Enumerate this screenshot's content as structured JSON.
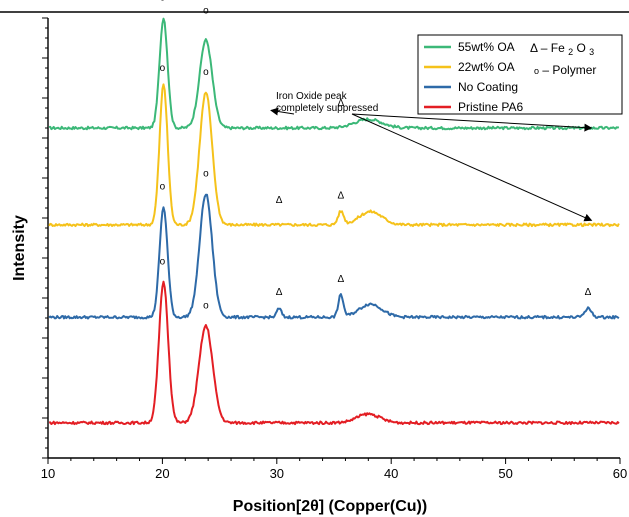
{
  "chart_data": {
    "type": "line",
    "xlabel": "Position[2θ] (Copper(Cu))",
    "ylabel": "Intensity",
    "xlim": [
      10,
      60
    ],
    "x_ticks": [
      10,
      20,
      30,
      40,
      50,
      60
    ],
    "y_ticks": "unlabeled",
    "grid": false,
    "legend_placement": "top-right",
    "series": [
      {
        "name": "55wt% OA",
        "color": "#3cb878",
        "baseline": 0.75,
        "peaks": [
          {
            "x": 20.1,
            "y": 1.0,
            "w": 0.35
          },
          {
            "x": 23.8,
            "y": 0.95,
            "w": 0.55
          },
          {
            "x": 38.0,
            "y": 0.77,
            "w": 1.2
          }
        ]
      },
      {
        "name": "22wt% OA",
        "color": "#f5c21b",
        "baseline": 0.53,
        "peaks": [
          {
            "x": 20.1,
            "y": 0.85,
            "w": 0.35
          },
          {
            "x": 23.8,
            "y": 0.83,
            "w": 0.55
          },
          {
            "x": 35.6,
            "y": 0.56,
            "w": 0.25
          },
          {
            "x": 38.2,
            "y": 0.56,
            "w": 1.0
          }
        ]
      },
      {
        "name": "No Coating",
        "color": "#2e6aa8",
        "baseline": 0.32,
        "peaks": [
          {
            "x": 20.1,
            "y": 0.57,
            "w": 0.35
          },
          {
            "x": 23.8,
            "y": 0.6,
            "w": 0.55
          },
          {
            "x": 30.2,
            "y": 0.34,
            "w": 0.2
          },
          {
            "x": 35.6,
            "y": 0.37,
            "w": 0.22
          },
          {
            "x": 38.2,
            "y": 0.35,
            "w": 1.0
          },
          {
            "x": 57.2,
            "y": 0.34,
            "w": 0.3
          }
        ]
      },
      {
        "name": "Pristine PA6",
        "color": "#e31e24",
        "baseline": 0.08,
        "peaks": [
          {
            "x": 20.1,
            "y": 0.4,
            "w": 0.4
          },
          {
            "x": 23.8,
            "y": 0.3,
            "w": 0.6
          },
          {
            "x": 38.0,
            "y": 0.1,
            "w": 1.0
          }
        ]
      }
    ],
    "peak_markers": [
      {
        "x": 20.0,
        "y": 1.04,
        "symbol": "o"
      },
      {
        "x": 23.8,
        "y": 1.01,
        "symbol": "o"
      },
      {
        "x": 35.6,
        "y": 0.8,
        "symbol": "Δ"
      },
      {
        "x": 20.0,
        "y": 0.88,
        "symbol": "o"
      },
      {
        "x": 23.8,
        "y": 0.87,
        "symbol": "o"
      },
      {
        "x": 30.2,
        "y": 0.58,
        "symbol": "Δ"
      },
      {
        "x": 35.6,
        "y": 0.59,
        "symbol": "Δ"
      },
      {
        "x": 20.0,
        "y": 0.61,
        "symbol": "o"
      },
      {
        "x": 23.8,
        "y": 0.64,
        "symbol": "o"
      },
      {
        "x": 30.2,
        "y": 0.37,
        "symbol": "Δ"
      },
      {
        "x": 35.6,
        "y": 0.4,
        "symbol": "Δ"
      },
      {
        "x": 57.2,
        "y": 0.37,
        "symbol": "Δ"
      },
      {
        "x": 20.0,
        "y": 0.44,
        "symbol": "o"
      },
      {
        "x": 23.8,
        "y": 0.34,
        "symbol": "o"
      }
    ],
    "legend_symbols": {
      "fe2o3_symbol": "Δ",
      "fe2o3_dash": "–",
      "fe2o3_main": "Fe",
      "fe2o3_sub1": "2",
      "fe2o3_mid": "O",
      "fe2o3_sub2": "3",
      "polymer_symbol": "o",
      "polymer_label": "– Polymer"
    },
    "annotation": {
      "line1": "Iron Oxide peak",
      "line2": "completely suppressed",
      "arrow_targets": [
        {
          "x": 29.5,
          "y": 0.79
        },
        {
          "x": 57.5,
          "y": 0.75
        },
        {
          "x": 57.5,
          "y": 0.54
        }
      ]
    }
  }
}
